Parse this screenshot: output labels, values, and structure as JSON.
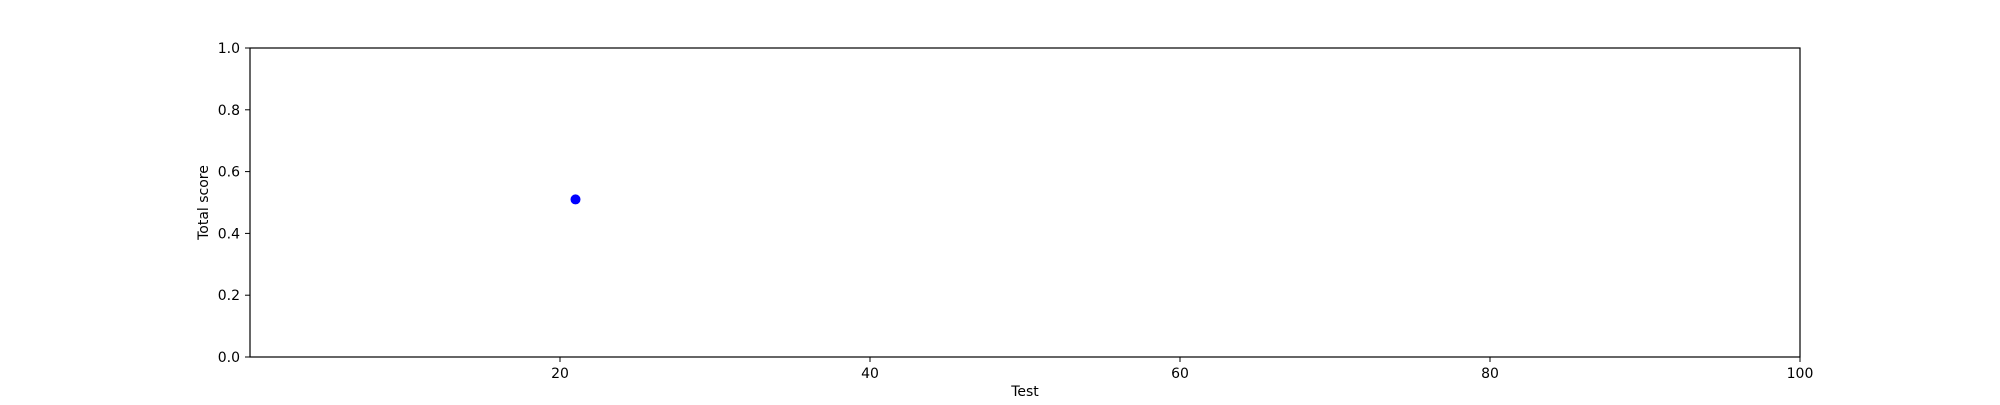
{
  "chart_data": {
    "type": "scatter",
    "title": "",
    "xlabel": "Test",
    "ylabel": "Total score",
    "xlim": [
      0,
      100
    ],
    "ylim": [
      0.0,
      1.0
    ],
    "xticks": [
      20,
      40,
      60,
      80,
      100
    ],
    "xtick_labels": [
      "20",
      "40",
      "60",
      "80",
      "100"
    ],
    "yticks": [
      0.0,
      0.2,
      0.4,
      0.6,
      0.8,
      1.0
    ],
    "ytick_labels": [
      "0.0",
      "0.2",
      "0.4",
      "0.6",
      "0.8",
      "1.0"
    ],
    "grid": false,
    "series": [
      {
        "name": "Total score",
        "color": "#0000ff",
        "points": [
          {
            "x": 21,
            "y": 0.51
          }
        ]
      }
    ]
  }
}
